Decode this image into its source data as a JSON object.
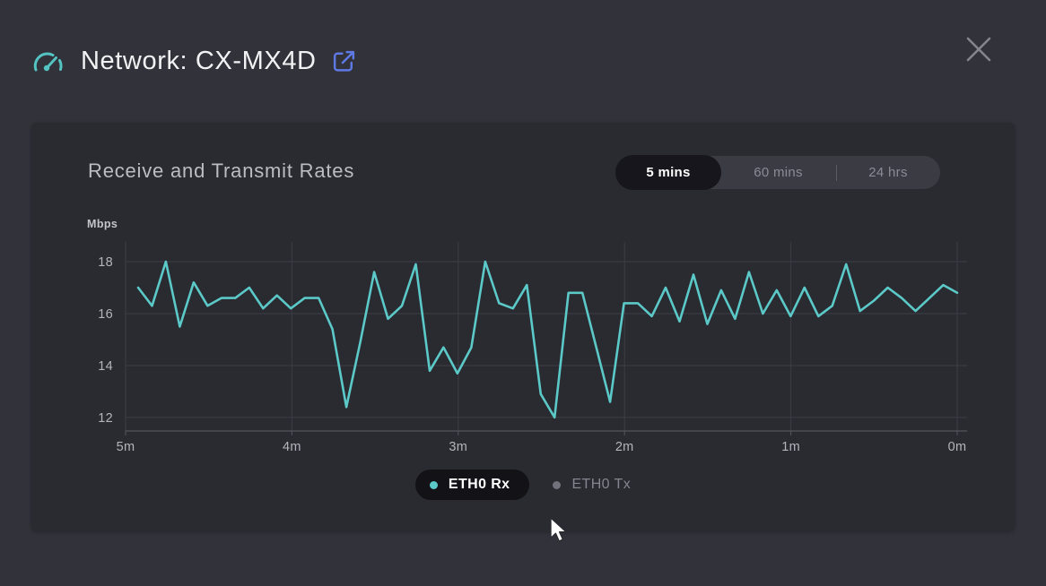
{
  "header": {
    "title": "Network: CX-MX4D"
  },
  "panel": {
    "heading": "Receive and Transmit Rates",
    "time_range": {
      "selected": "5 mins",
      "options": [
        {
          "label": "5 mins",
          "active": true
        },
        {
          "label": "60 mins",
          "active": false
        },
        {
          "label": "24 hrs",
          "active": false
        }
      ]
    },
    "legend": {
      "items": [
        {
          "label": "ETH0 Rx",
          "active": true,
          "dot_color": "#5bc9c7"
        },
        {
          "label": "ETH0 Tx",
          "active": false,
          "dot_color": "#72727c"
        }
      ]
    }
  },
  "chart_data": {
    "type": "line",
    "title": "Receive and Transmit Rates",
    "ylabel": "Mbps",
    "xlabel": "",
    "xticks": [
      "5m",
      "4m",
      "3m",
      "2m",
      "1m",
      "0m"
    ],
    "yticks": [
      12,
      14,
      16,
      18
    ],
    "ylim": [
      11.48,
      18.76
    ],
    "grid": true,
    "legend_position": "bottom",
    "series": [
      {
        "name": "ETH0 Rx",
        "color": "#5bc9c7",
        "visible": true,
        "unit": "Mbps",
        "values": [
          17.0,
          16.3,
          18.0,
          15.5,
          17.2,
          16.3,
          16.6,
          16.6,
          17.0,
          16.2,
          16.7,
          16.2,
          16.6,
          16.6,
          15.4,
          12.4,
          14.9,
          17.6,
          15.8,
          16.3,
          17.9,
          13.8,
          14.7,
          13.7,
          14.7,
          18.0,
          16.4,
          16.2,
          17.1,
          12.9,
          12.0,
          16.8,
          16.8,
          14.7,
          12.6,
          16.4,
          16.4,
          15.9,
          17.0,
          15.7,
          17.5,
          15.6,
          16.9,
          15.8,
          17.6,
          16.0,
          16.9,
          15.9,
          17.0,
          15.9,
          16.3,
          17.9,
          16.1,
          16.5,
          17.0,
          16.6,
          16.1,
          16.6,
          17.1,
          16.8
        ]
      },
      {
        "name": "ETH0 Tx",
        "color": "#72727c",
        "visible": false,
        "unit": "Mbps",
        "values": []
      }
    ]
  },
  "colors": {
    "background": "#32323a",
    "panel": "#2a2a31",
    "accent_teal": "#5bc9c7",
    "accent_blue": "#5f79e4",
    "grid": "#3d3d46",
    "axis": "#55555e",
    "tick_text": "#b4b4bc"
  }
}
